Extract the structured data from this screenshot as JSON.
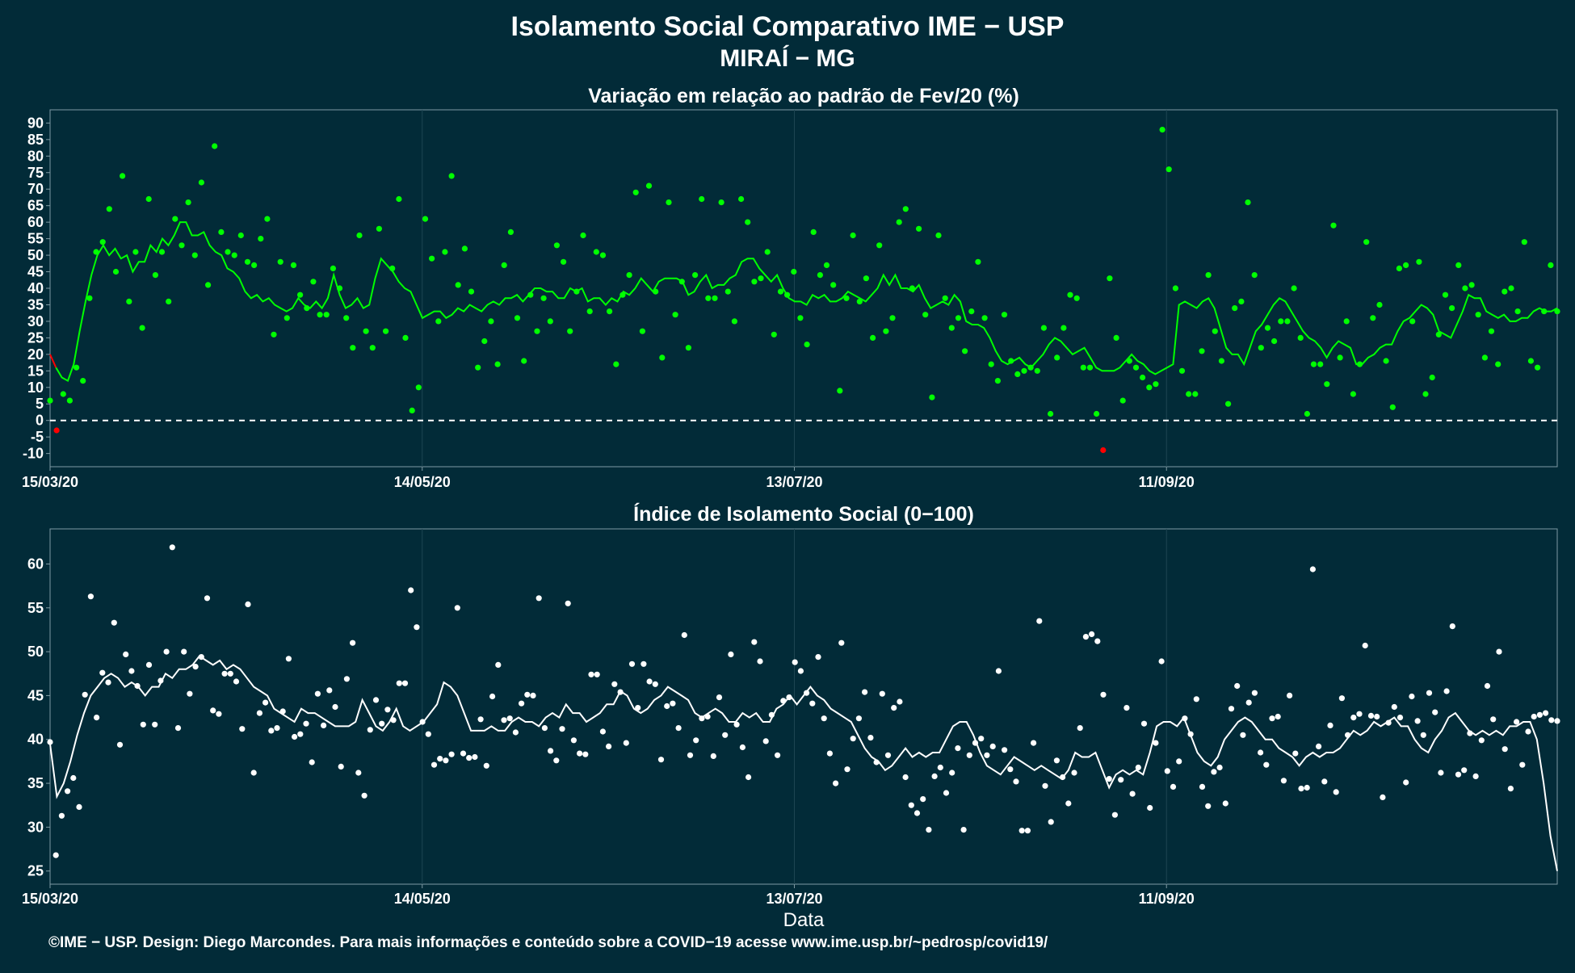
{
  "header": {
    "title": "Isolamento Social Comparativo IME − USP",
    "subtitle": "MIRAÍ − MG"
  },
  "footer": {
    "credit": "©IME − USP. Design: Diego Marcondes. Para mais informações e conteúdo sobre a COVID−19 acesse www.ime.usp.br/~pedrosp/covid19/"
  },
  "colors": {
    "background": "#022b38",
    "panel_border": "#7f9aa3",
    "grid": "#1e4653",
    "positive": "#00ff00",
    "negative": "#ff0000",
    "index": "#ffffff"
  },
  "chart_data": [
    {
      "type": "scatter",
      "title": "Variação em relação ao padrão de Fev/20 (%)",
      "xlabel": "",
      "ylabel": "",
      "x_start": "2020-03-15",
      "x_end": "2020-11-13",
      "x_ticks": [
        "15/03/20",
        "14/05/20",
        "13/07/20",
        "11/09/20"
      ],
      "y_ticks": [
        90,
        85,
        80,
        75,
        70,
        65,
        60,
        55,
        50,
        45,
        40,
        35,
        30,
        25,
        20,
        15,
        10,
        5,
        0,
        -5,
        -10
      ],
      "ylim": [
        -14,
        94
      ],
      "reference_line": 0,
      "series": [
        {
          "values": [
            6,
            -3,
            8,
            6,
            16,
            12,
            37,
            51,
            54,
            64,
            45,
            74,
            36,
            51,
            28,
            67,
            44,
            51,
            36,
            61,
            53,
            66,
            50,
            72,
            41,
            83,
            57,
            51,
            50,
            56,
            48,
            47,
            55,
            61,
            26,
            48,
            31,
            47,
            38,
            34,
            42,
            32,
            32,
            46,
            40,
            31,
            22,
            56,
            27,
            22,
            58,
            27,
            46,
            67,
            25,
            3,
            10,
            61,
            49,
            30,
            51,
            74,
            41,
            52,
            39,
            16,
            24,
            30,
            17,
            47,
            57,
            31,
            18,
            38,
            27,
            37,
            30,
            53,
            48,
            27,
            39,
            56,
            33,
            51,
            50,
            33,
            17,
            38,
            44,
            69,
            27,
            71,
            39,
            19,
            66,
            32,
            42,
            22,
            44,
            67,
            37,
            37,
            66,
            39,
            30,
            67,
            60,
            42,
            43,
            51,
            26,
            39,
            38,
            45,
            31,
            23,
            57,
            44,
            47,
            41,
            9,
            37,
            56,
            36,
            43,
            25,
            53,
            27,
            31,
            60,
            64,
            40,
            58,
            32,
            7,
            56,
            37,
            28,
            31,
            21,
            33,
            48,
            31,
            17,
            12,
            32,
            18,
            14,
            15,
            16,
            15,
            28,
            2,
            19,
            28,
            38,
            37,
            16,
            16,
            2,
            -9,
            43,
            25,
            6,
            18,
            16,
            13,
            10,
            11,
            88,
            76,
            40,
            15,
            8,
            8,
            21,
            44,
            27,
            18,
            5,
            34,
            36,
            66,
            44,
            22,
            28,
            24,
            30,
            30,
            40,
            25,
            2,
            17,
            17,
            11,
            59,
            19,
            30,
            8,
            17,
            54,
            31,
            35,
            18,
            4,
            46,
            47,
            30,
            48,
            8,
            13,
            26,
            38,
            34,
            47,
            40,
            41,
            32,
            19,
            27,
            17,
            39,
            40,
            33,
            54,
            18,
            16,
            33,
            47,
            33
          ]
        }
      ],
      "trend_line": [
        20,
        16,
        13,
        12,
        17,
        27,
        36,
        44,
        50,
        53,
        50,
        52,
        49,
        50,
        45,
        48,
        48,
        53,
        51,
        55,
        53,
        56,
        60,
        60,
        56,
        56,
        57,
        53,
        51,
        50,
        46,
        45,
        43,
        39,
        37,
        38,
        36,
        37,
        35,
        34,
        33,
        34,
        37,
        35,
        34,
        36,
        34,
        37,
        44,
        38,
        34,
        35,
        37,
        34,
        35,
        43,
        49,
        47,
        45,
        42,
        40,
        39,
        35,
        31,
        32,
        33,
        33,
        31,
        32,
        34,
        33,
        35,
        34,
        33,
        35,
        36,
        35,
        37,
        37,
        38,
        36,
        38,
        40,
        40,
        39,
        39,
        37,
        37,
        40,
        39,
        40,
        36,
        37,
        37,
        35,
        37,
        36,
        39,
        38,
        40,
        43,
        41,
        39,
        42,
        43,
        43,
        43,
        42,
        38,
        39,
        42,
        44,
        40,
        41,
        41,
        43,
        44,
        48,
        49,
        49,
        46,
        44,
        42,
        44,
        40,
        37,
        36,
        36,
        35,
        38,
        37,
        38,
        36,
        36,
        37,
        39,
        38,
        37,
        36,
        38,
        40,
        44,
        41,
        44,
        40,
        40,
        39,
        41,
        37,
        34,
        35,
        36,
        35,
        38,
        36,
        30,
        29,
        29,
        28,
        25,
        21,
        18,
        17,
        18,
        19,
        17,
        16,
        18,
        20,
        23,
        25,
        24,
        22,
        20,
        21,
        22,
        19,
        16,
        15,
        15,
        15,
        16,
        18,
        20,
        18,
        17,
        15,
        14,
        15,
        16,
        17,
        35,
        36,
        35,
        34,
        36,
        37,
        34,
        28,
        22,
        20,
        20,
        17,
        22,
        27,
        29,
        32,
        35,
        37,
        36,
        33,
        30,
        27,
        25,
        24,
        22,
        19,
        22,
        24,
        23,
        22,
        17,
        17,
        19,
        20,
        22,
        23,
        23,
        27,
        30,
        31,
        33,
        35,
        34,
        32,
        27,
        26,
        25,
        29,
        33,
        38,
        37,
        37,
        33,
        32,
        31,
        32,
        30,
        30,
        31,
        31,
        33,
        34,
        33,
        33,
        34
      ]
    },
    {
      "type": "scatter",
      "title": "Índice de Isolamento Social (0−100)",
      "xlabel": "Data",
      "ylabel": "",
      "x_start": "2020-03-15",
      "x_end": "2020-11-13",
      "x_ticks": [
        "15/03/20",
        "14/05/20",
        "13/07/20",
        "11/09/20"
      ],
      "y_ticks": [
        60,
        55,
        50,
        45,
        40,
        35,
        30,
        25
      ],
      "ylim": [
        23.5,
        64
      ],
      "series": [
        {
          "values": [
            39.7,
            26.8,
            31.3,
            34.1,
            35.6,
            32.3,
            45.1,
            56.3,
            42.5,
            47.6,
            46.5,
            53.3,
            39.4,
            49.7,
            47.8,
            46.1,
            41.7,
            48.5,
            41.7,
            46.7,
            50.0,
            61.9,
            41.3,
            50.0,
            45.2,
            48.3,
            49.4,
            56.1,
            43.3,
            42.9,
            47.5,
            47.5,
            46.6,
            41.2,
            55.4,
            36.2,
            43.0,
            44.2,
            41.0,
            41.3,
            43.2,
            49.2,
            40.3,
            40.6,
            41.8,
            37.4,
            45.2,
            41.6,
            45.6,
            43.7,
            36.9,
            46.9,
            51.0,
            36.2,
            33.6,
            41.1,
            44.5,
            41.8,
            43.4,
            42.2,
            46.4,
            46.4,
            57.0,
            52.8,
            42.0,
            40.6,
            37.1,
            37.8,
            37.6,
            38.3,
            55.0,
            38.4,
            37.9,
            38.0,
            42.3,
            37.0,
            44.9,
            48.5,
            42.2,
            42.4,
            40.8,
            44.1,
            45.1,
            45.0,
            56.1,
            41.3,
            38.7,
            37.6,
            41.2,
            55.5,
            39.9,
            38.4,
            38.3,
            47.4,
            47.4,
            40.9,
            39.2,
            46.3,
            45.4,
            39.6,
            48.6,
            43.6,
            48.6,
            46.6,
            46.3,
            37.7,
            43.8,
            44.1,
            41.3,
            51.9,
            38.2,
            39.9,
            42.4,
            42.6,
            38.1,
            44.8,
            40.5,
            49.7,
            41.7,
            39.1,
            35.7,
            51.1,
            48.9,
            39.8,
            42.8,
            38.2,
            44.4,
            44.8,
            48.8,
            47.8,
            45.3,
            44.1,
            49.4,
            42.4,
            38.4,
            35.0,
            51.0,
            36.6,
            40.1,
            42.4,
            45.4,
            40.2,
            37.4,
            45.2,
            38.2,
            43.6,
            44.3,
            35.7,
            32.5,
            31.6,
            33.2,
            29.7,
            35.8,
            36.8,
            33.9,
            36.2,
            39.0,
            29.7,
            38.2,
            39.6,
            40.1,
            38.2,
            39.2,
            47.8,
            38.8,
            36.6,
            35.2,
            29.6,
            29.6,
            39.6,
            53.5,
            34.7,
            30.6,
            37.6,
            35.7,
            32.7,
            36.2,
            41.3,
            51.7,
            52.0,
            51.2,
            45.1,
            35.5,
            31.4,
            35.4,
            43.6,
            33.8,
            36.8,
            41.8,
            32.2,
            39.6,
            48.9,
            36.4,
            34.6,
            37.5,
            42.4,
            40.6,
            44.6,
            34.6,
            32.4,
            36.3,
            36.8,
            32.7,
            43.5,
            46.1,
            40.5,
            44.2,
            45.3,
            38.5,
            37.1,
            42.4,
            42.6,
            35.3,
            45.0,
            38.4,
            34.4,
            34.5,
            59.4,
            39.2,
            35.2,
            41.6,
            34.0,
            44.7,
            40.5,
            42.5,
            42.9,
            50.7,
            42.7,
            42.6,
            33.4,
            41.9,
            43.7,
            42.5,
            35.1,
            44.9,
            42.1,
            40.5,
            45.3,
            43.1,
            36.2,
            45.5,
            52.9,
            36.0,
            36.5,
            40.7,
            35.8,
            39.9,
            46.1,
            42.3,
            50.0,
            38.9,
            34.4,
            42.0,
            37.1,
            40.9,
            42.6,
            42.8,
            43.0,
            42.2,
            42.1
          ]
        }
      ],
      "trend_line": [
        39.5,
        33.5,
        35,
        37.5,
        40.5,
        43,
        45,
        46,
        47,
        47.5,
        47,
        46,
        46.5,
        46,
        45,
        46,
        46,
        47.5,
        47,
        48,
        48,
        48.5,
        49.5,
        49,
        48.5,
        49,
        48,
        48.5,
        48,
        47,
        46,
        45.5,
        45,
        43.5,
        43,
        42.5,
        42,
        43.5,
        43,
        43,
        42.5,
        42,
        41.5,
        41.5,
        41.5,
        42,
        44.5,
        43,
        41.5,
        41,
        42,
        43.5,
        41.5,
        41,
        41.5,
        42,
        43,
        44,
        46.5,
        46,
        45,
        43,
        41,
        41,
        41,
        41.5,
        41,
        41,
        42,
        42.5,
        42,
        42,
        41.5,
        42.5,
        43,
        42.5,
        44,
        43,
        43,
        42,
        42.5,
        43,
        44,
        44,
        45.5,
        45,
        43.5,
        43,
        43.5,
        44.5,
        45,
        46,
        45.5,
        45,
        44.5,
        43,
        42.5,
        43,
        43.5,
        43,
        42,
        42,
        43,
        42.5,
        43,
        42,
        42,
        43.5,
        44,
        45,
        44,
        45,
        46,
        45,
        44.5,
        43.5,
        43,
        42.5,
        42,
        40.5,
        39,
        38,
        37.5,
        36.5,
        37,
        38,
        39,
        38,
        38.5,
        38,
        38.5,
        38.5,
        40,
        41.5,
        42,
        42,
        40.5,
        38.5,
        37,
        36.5,
        36,
        37,
        38,
        37.5,
        37,
        36.5,
        37,
        36.5,
        36,
        35.5,
        36.5,
        38.5,
        38,
        38,
        38.5,
        36.5,
        34.5,
        36,
        36.5,
        36,
        36.5,
        36,
        38.5,
        41.5,
        42,
        42,
        41.5,
        42.5,
        40.5,
        38.5,
        37.5,
        37,
        38,
        40,
        41,
        42,
        42.5,
        42,
        41,
        40,
        40,
        39,
        38.5,
        38,
        37,
        38,
        38.5,
        38,
        38.5,
        38.5,
        39,
        40,
        41,
        40.5,
        41,
        42,
        41.5,
        42,
        42.5,
        41.5,
        41.5,
        40,
        39,
        38.5,
        40,
        41,
        42.5,
        43,
        42,
        41,
        40.5,
        41,
        40.5,
        41,
        40.5,
        41.5,
        41.5,
        42,
        42,
        40,
        35,
        29,
        25
      ]
    }
  ]
}
